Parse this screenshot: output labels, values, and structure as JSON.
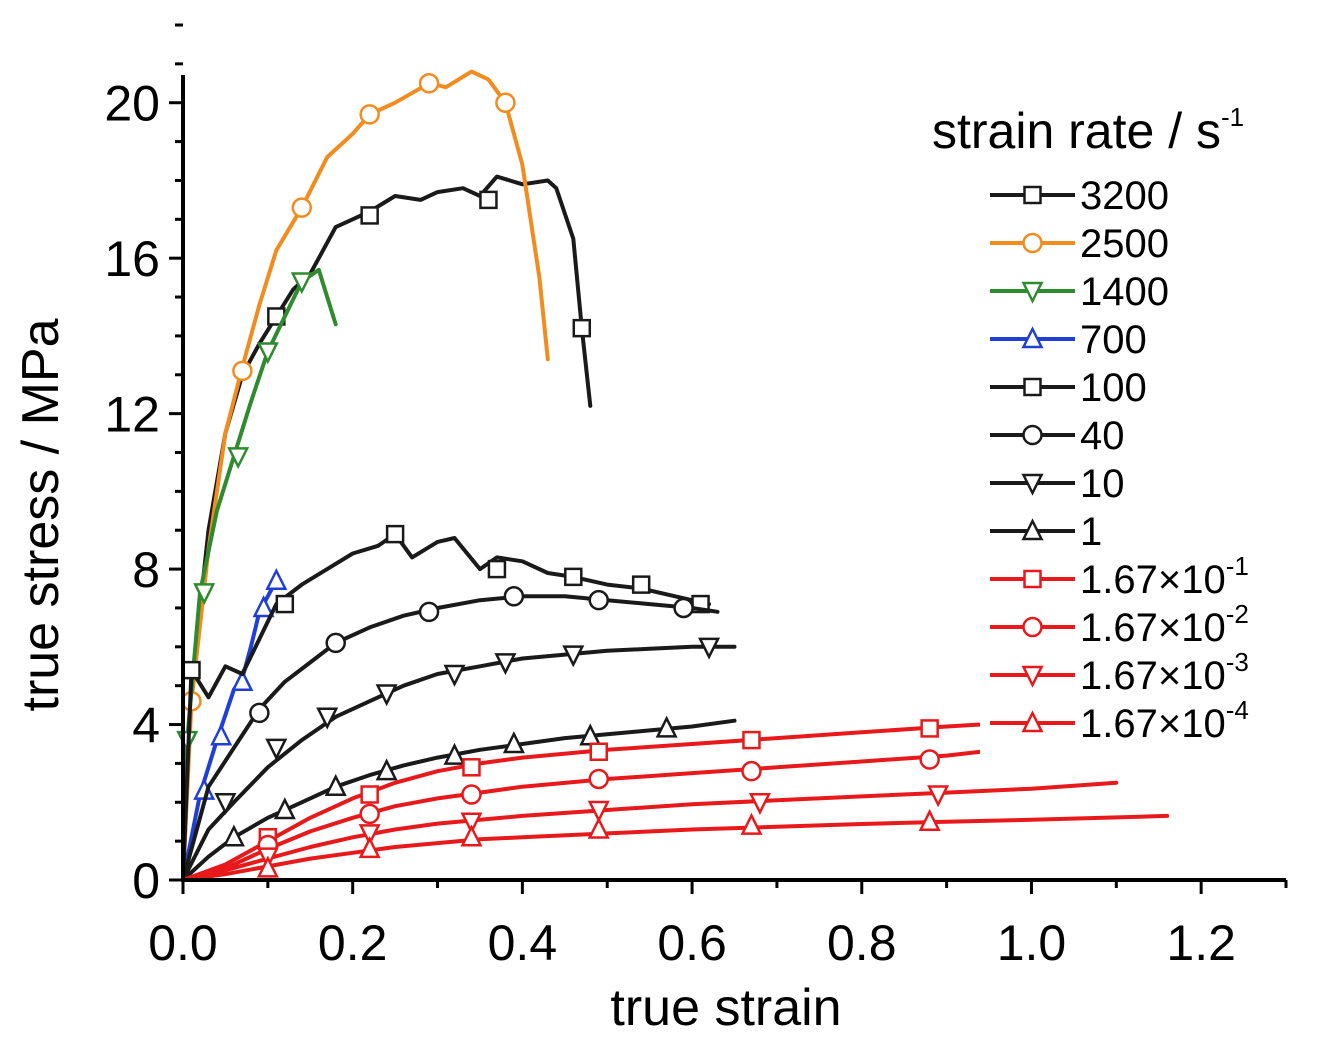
{
  "chart_data": {
    "type": "line",
    "title": "",
    "xlabel": "true strain",
    "ylabel": "true stress / MPa",
    "xlim": [
      0,
      1.3
    ],
    "ylim": [
      0,
      22
    ],
    "xticks": [
      0.0,
      0.2,
      0.4,
      0.6,
      0.8,
      1.0,
      1.2
    ],
    "xtick_labels": [
      "0.0",
      "0.2",
      "0.4",
      "0.6",
      "0.8",
      "1.0",
      "1.2"
    ],
    "yticks": [
      0,
      4,
      8,
      12,
      16,
      20
    ],
    "ytick_labels": [
      "0",
      "4",
      "8",
      "12",
      "16",
      "20"
    ],
    "grid": false,
    "legend": {
      "title": "strain rate / s",
      "title_sup": "-1",
      "placement": "top-right"
    },
    "series": [
      {
        "name": "3200",
        "name_sup": "",
        "color": "#1a1a1a",
        "marker": "square",
        "x": [
          0,
          0.01,
          0.03,
          0.05,
          0.07,
          0.09,
          0.11,
          0.13,
          0.15,
          0.18,
          0.2,
          0.22,
          0.25,
          0.28,
          0.3,
          0.33,
          0.35,
          0.37,
          0.4,
          0.43,
          0.44,
          0.46,
          0.47,
          0.48
        ],
        "y": [
          0,
          5,
          9,
          11.5,
          13,
          13.8,
          14.5,
          15.2,
          15.6,
          16.8,
          17,
          17.2,
          17.6,
          17.5,
          17.7,
          17.8,
          17.6,
          18.1,
          17.9,
          18,
          17.8,
          16.5,
          14.2,
          12.2
        ],
        "markers_x": [
          0.11,
          0.22,
          0.36,
          0.47
        ],
        "markers_y": [
          14.5,
          17.1,
          17.5,
          14.2
        ]
      },
      {
        "name": "2500",
        "name_sup": "",
        "color": "#f28c1e",
        "marker": "circle",
        "x": [
          0,
          0.01,
          0.03,
          0.05,
          0.07,
          0.09,
          0.11,
          0.14,
          0.17,
          0.2,
          0.22,
          0.25,
          0.29,
          0.31,
          0.34,
          0.36,
          0.38,
          0.4,
          0.42,
          0.43
        ],
        "y": [
          0,
          4.6,
          8.5,
          11.5,
          13.2,
          14.8,
          16.2,
          17.3,
          18.6,
          19.2,
          19.7,
          20,
          20.5,
          20.4,
          20.8,
          20.6,
          20,
          18.4,
          15.5,
          13.4
        ],
        "markers_x": [
          0.01,
          0.07,
          0.14,
          0.22,
          0.29,
          0.38
        ],
        "markers_y": [
          4.6,
          13.1,
          17.3,
          19.7,
          20.5,
          20.0
        ]
      },
      {
        "name": "1400",
        "name_sup": "",
        "color": "#2e8b2e",
        "marker": "triangle-down",
        "x": [
          0,
          0.005,
          0.02,
          0.04,
          0.06,
          0.08,
          0.1,
          0.12,
          0.14,
          0.16,
          0.17,
          0.18
        ],
        "y": [
          0,
          3.6,
          7.4,
          9.5,
          10.9,
          12.3,
          13.6,
          14.5,
          15.4,
          15.7,
          15,
          14.3
        ],
        "markers_x": [
          0.005,
          0.025,
          0.065,
          0.1,
          0.14
        ],
        "markers_y": [
          3.6,
          7.4,
          10.9,
          13.6,
          15.4
        ]
      },
      {
        "name": "700",
        "name_sup": "",
        "color": "#1f3fd6",
        "marker": "triangle-up",
        "x": [
          0,
          0.02,
          0.04,
          0.06,
          0.07,
          0.08,
          0.09,
          0.1,
          0.11
        ],
        "y": [
          0,
          2.2,
          3.6,
          4.9,
          5.2,
          6,
          6.9,
          7.3,
          7.7
        ],
        "markers_x": [
          0.025,
          0.045,
          0.07,
          0.095,
          0.11
        ],
        "markers_y": [
          2.3,
          3.7,
          5.1,
          7.0,
          7.7
        ]
      },
      {
        "name": "100",
        "name_sup": "",
        "color": "#1a1a1a",
        "marker": "square",
        "x": [
          0,
          0.01,
          0.03,
          0.05,
          0.07,
          0.09,
          0.11,
          0.14,
          0.17,
          0.2,
          0.23,
          0.25,
          0.27,
          0.3,
          0.32,
          0.35,
          0.37,
          0.4,
          0.43,
          0.46,
          0.5,
          0.54,
          0.58,
          0.62
        ],
        "y": [
          0,
          5.4,
          4.7,
          5.5,
          5.3,
          6.2,
          7.1,
          7.6,
          8,
          8.4,
          8.6,
          8.9,
          8.3,
          8.7,
          8.8,
          8,
          8.3,
          8.2,
          7.9,
          7.8,
          7.6,
          7.5,
          7.3,
          7.1
        ],
        "markers_x": [
          0.01,
          0.12,
          0.25,
          0.37,
          0.46,
          0.54,
          0.61
        ],
        "markers_y": [
          5.4,
          7.1,
          8.9,
          8.0,
          7.8,
          7.6,
          7.1
        ]
      },
      {
        "name": "40",
        "name_sup": "",
        "color": "#1a1a1a",
        "marker": "circle",
        "x": [
          0,
          0.03,
          0.06,
          0.09,
          0.12,
          0.15,
          0.18,
          0.22,
          0.26,
          0.3,
          0.35,
          0.4,
          0.45,
          0.5,
          0.55,
          0.6,
          0.63
        ],
        "y": [
          0,
          2.4,
          3.4,
          4.4,
          5.1,
          5.6,
          6.1,
          6.5,
          6.8,
          7,
          7.2,
          7.3,
          7.3,
          7.2,
          7.1,
          7,
          6.9
        ],
        "markers_x": [
          0.09,
          0.18,
          0.29,
          0.39,
          0.49,
          0.59
        ],
        "markers_y": [
          4.3,
          6.1,
          6.9,
          7.3,
          7.2,
          7.0
        ]
      },
      {
        "name": "10",
        "name_sup": "",
        "color": "#1a1a1a",
        "marker": "triangle-down",
        "x": [
          0,
          0.03,
          0.06,
          0.1,
          0.14,
          0.18,
          0.22,
          0.26,
          0.3,
          0.35,
          0.4,
          0.45,
          0.5,
          0.55,
          0.6,
          0.65
        ],
        "y": [
          0,
          1.3,
          2,
          2.9,
          3.6,
          4.2,
          4.6,
          5,
          5.3,
          5.5,
          5.7,
          5.8,
          5.9,
          5.95,
          6,
          6
        ],
        "markers_x": [
          0.05,
          0.11,
          0.17,
          0.24,
          0.32,
          0.38,
          0.46,
          0.62
        ],
        "markers_y": [
          2.0,
          3.4,
          4.2,
          4.8,
          5.3,
          5.6,
          5.8,
          6.0
        ]
      },
      {
        "name": "1",
        "name_sup": "",
        "color": "#1a1a1a",
        "marker": "triangle-up",
        "x": [
          0,
          0.03,
          0.06,
          0.1,
          0.14,
          0.18,
          0.22,
          0.26,
          0.3,
          0.35,
          0.4,
          0.45,
          0.5,
          0.55,
          0.6,
          0.65
        ],
        "y": [
          0,
          0.6,
          1.1,
          1.6,
          2,
          2.4,
          2.7,
          2.95,
          3.15,
          3.35,
          3.5,
          3.65,
          3.75,
          3.85,
          3.95,
          4.1
        ],
        "markers_x": [
          0.06,
          0.12,
          0.18,
          0.24,
          0.32,
          0.39,
          0.48,
          0.57
        ],
        "markers_y": [
          1.1,
          1.8,
          2.4,
          2.8,
          3.2,
          3.5,
          3.7,
          3.9
        ]
      },
      {
        "name": "1.67×10",
        "name_sup": "-1",
        "color": "#e8191b",
        "marker": "square",
        "x": [
          0,
          0.05,
          0.1,
          0.15,
          0.2,
          0.25,
          0.3,
          0.35,
          0.4,
          0.5,
          0.6,
          0.7,
          0.8,
          0.9,
          0.94
        ],
        "y": [
          0,
          0.4,
          1,
          1.6,
          2.1,
          2.5,
          2.8,
          3,
          3.15,
          3.35,
          3.5,
          3.65,
          3.8,
          3.95,
          4.0
        ],
        "markers_x": [
          0.1,
          0.22,
          0.34,
          0.49,
          0.67,
          0.88
        ],
        "markers_y": [
          1.1,
          2.2,
          2.9,
          3.3,
          3.6,
          3.9
        ]
      },
      {
        "name": "1.67×10",
        "name_sup": "-2",
        "color": "#e8191b",
        "marker": "circle",
        "x": [
          0,
          0.05,
          0.1,
          0.15,
          0.2,
          0.25,
          0.3,
          0.35,
          0.4,
          0.5,
          0.6,
          0.7,
          0.8,
          0.9,
          0.94
        ],
        "y": [
          0,
          0.3,
          0.8,
          1.25,
          1.6,
          1.9,
          2.1,
          2.25,
          2.4,
          2.6,
          2.75,
          2.9,
          3.05,
          3.2,
          3.3
        ],
        "markers_x": [
          0.1,
          0.22,
          0.34,
          0.49,
          0.67,
          0.88
        ],
        "markers_y": [
          0.9,
          1.7,
          2.2,
          2.6,
          2.8,
          3.1
        ]
      },
      {
        "name": "1.67×10",
        "name_sup": "-3",
        "color": "#e8191b",
        "marker": "triangle-down",
        "x": [
          0,
          0.05,
          0.1,
          0.15,
          0.2,
          0.25,
          0.3,
          0.35,
          0.4,
          0.5,
          0.6,
          0.7,
          0.8,
          0.9,
          1.0,
          1.1
        ],
        "y": [
          0,
          0.25,
          0.55,
          0.85,
          1.1,
          1.3,
          1.45,
          1.55,
          1.65,
          1.8,
          1.95,
          2.05,
          2.15,
          2.25,
          2.35,
          2.5
        ],
        "markers_x": [
          0.1,
          0.22,
          0.34,
          0.49,
          0.68,
          0.89
        ],
        "markers_y": [
          0.6,
          1.2,
          1.5,
          1.8,
          2.0,
          2.2
        ]
      },
      {
        "name": "1.67×10",
        "name_sup": "-4",
        "color": "#e8191b",
        "marker": "triangle-up",
        "x": [
          0,
          0.05,
          0.1,
          0.15,
          0.2,
          0.25,
          0.3,
          0.35,
          0.4,
          0.5,
          0.6,
          0.7,
          0.8,
          0.9,
          1.0,
          1.16
        ],
        "y": [
          0,
          0.15,
          0.35,
          0.55,
          0.7,
          0.85,
          0.95,
          1.05,
          1.1,
          1.2,
          1.3,
          1.37,
          1.44,
          1.5,
          1.55,
          1.65
        ],
        "markers_x": [
          0.1,
          0.22,
          0.34,
          0.49,
          0.67,
          0.88
        ],
        "markers_y": [
          0.3,
          0.8,
          1.1,
          1.3,
          1.4,
          1.5
        ]
      }
    ]
  }
}
